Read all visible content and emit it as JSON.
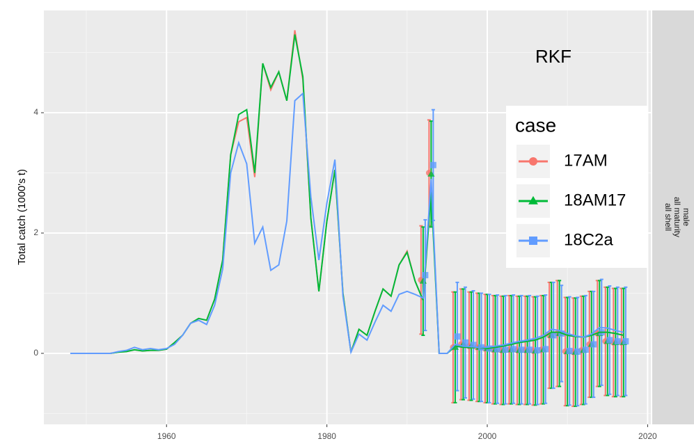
{
  "chart_data": {
    "type": "line",
    "annotation": "RKF",
    "y_label": "Total catch (1000's t)",
    "strip": [
      "male",
      "all maturity",
      "all shell"
    ],
    "legend_title": "case",
    "legend_position": "right",
    "grid": true,
    "xlim": [
      1944.7,
      2020.4
    ],
    "ylim": [
      -1.18,
      5.7
    ],
    "xticks": [
      1960,
      1980,
      2000,
      2020
    ],
    "yticks": [
      0,
      2,
      4
    ],
    "x_minor": [
      1950,
      1970,
      1990,
      2010
    ],
    "y_minor": [
      -1,
      1,
      3,
      5
    ],
    "x": [
      1948,
      1949,
      1950,
      1951,
      1952,
      1953,
      1954,
      1955,
      1956,
      1957,
      1958,
      1959,
      1960,
      1961,
      1962,
      1963,
      1964,
      1965,
      1966,
      1967,
      1968,
      1969,
      1970,
      1971,
      1972,
      1973,
      1974,
      1975,
      1976,
      1977,
      1978,
      1979,
      1980,
      1981,
      1982,
      1983,
      1984,
      1985,
      1986,
      1987,
      1988,
      1989,
      1990,
      1991,
      1992,
      1993,
      1994,
      1995,
      1996,
      1997,
      1998,
      1999,
      2000,
      2001,
      2002,
      2003,
      2004,
      2005,
      2006,
      2007,
      2008,
      2009,
      2010,
      2011,
      2012,
      2013,
      2014,
      2015,
      2016,
      2017
    ],
    "obs_x": [
      1992,
      1993,
      1996,
      1997,
      1998,
      1999,
      2000,
      2001,
      2002,
      2003,
      2004,
      2005,
      2006,
      2007,
      2008,
      2009,
      2010,
      2011,
      2012,
      2013,
      2014,
      2015,
      2016,
      2017
    ],
    "series": [
      {
        "name": "17AM",
        "color": "#F8766D",
        "shape": "circle",
        "values": [
          0,
          0,
          0,
          0,
          0,
          0,
          0.02,
          0.03,
          0.06,
          0.04,
          0.05,
          0.05,
          0.07,
          0.18,
          0.3,
          0.5,
          0.58,
          0.55,
          0.9,
          1.55,
          3.3,
          3.85,
          3.92,
          2.93,
          4.82,
          4.38,
          4.68,
          4.2,
          5.37,
          4.55,
          2.25,
          1.03,
          2.2,
          3.05,
          1.0,
          0.02,
          0.4,
          0.3,
          0.7,
          1.07,
          0.95,
          1.47,
          1.7,
          1.2,
          0.88,
          2.8,
          0,
          0,
          0.12,
          0.1,
          0.1,
          0.1,
          0.08,
          0.1,
          0.12,
          0.15,
          0.18,
          0.2,
          0.22,
          0.27,
          0.35,
          0.35,
          0.3,
          0.28,
          0.27,
          0.3,
          0.35,
          0.35,
          0.33,
          0.3
        ],
        "obs": [
          1.22,
          3.0,
          0.1,
          0.15,
          0.12,
          0.1,
          0.08,
          0.06,
          0.05,
          0.06,
          0.05,
          0.05,
          0.04,
          0.06,
          0.3,
          0.33,
          0.03,
          0.02,
          0.05,
          0.15,
          0.33,
          0.2,
          0.18,
          0.18
        ],
        "obs_err": [
          0.9,
          0.88,
          0.92,
          0.92,
          0.9,
          0.9,
          0.9,
          0.9,
          0.9,
          0.9,
          0.9,
          0.9,
          0.9,
          0.9,
          0.88,
          0.88,
          0.9,
          0.9,
          0.9,
          0.88,
          0.88,
          0.9,
          0.9,
          0.9
        ]
      },
      {
        "name": "18AM17",
        "color": "#00BA38",
        "shape": "triangle",
        "values": [
          0,
          0,
          0,
          0,
          0,
          0,
          0.02,
          0.03,
          0.06,
          0.04,
          0.05,
          0.05,
          0.07,
          0.18,
          0.3,
          0.5,
          0.58,
          0.55,
          0.9,
          1.55,
          3.3,
          3.97,
          4.05,
          3.0,
          4.82,
          4.42,
          4.68,
          4.2,
          5.3,
          4.6,
          2.25,
          1.03,
          2.2,
          3.05,
          1.0,
          0.02,
          0.4,
          0.3,
          0.7,
          1.07,
          0.95,
          1.47,
          1.68,
          1.2,
          0.88,
          2.69,
          0,
          0,
          0.12,
          0.1,
          0.1,
          0.1,
          0.08,
          0.1,
          0.12,
          0.15,
          0.18,
          0.2,
          0.22,
          0.27,
          0.35,
          0.35,
          0.3,
          0.28,
          0.27,
          0.3,
          0.35,
          0.35,
          0.33,
          0.3
        ],
        "obs": [
          1.2,
          2.98,
          0.1,
          0.15,
          0.12,
          0.1,
          0.08,
          0.06,
          0.05,
          0.06,
          0.05,
          0.05,
          0.04,
          0.06,
          0.3,
          0.33,
          0.03,
          0.02,
          0.05,
          0.15,
          0.33,
          0.2,
          0.18,
          0.18
        ],
        "obs_err": [
          0.9,
          0.88,
          0.92,
          0.92,
          0.9,
          0.9,
          0.9,
          0.9,
          0.9,
          0.9,
          0.9,
          0.9,
          0.9,
          0.9,
          0.88,
          0.88,
          0.9,
          0.9,
          0.9,
          0.88,
          0.88,
          0.9,
          0.9,
          0.9
        ]
      },
      {
        "name": "18C2a",
        "color": "#619CFF",
        "shape": "square",
        "values": [
          0,
          0,
          0,
          0,
          0,
          0,
          0.03,
          0.05,
          0.1,
          0.06,
          0.08,
          0.06,
          0.08,
          0.15,
          0.3,
          0.5,
          0.55,
          0.48,
          0.8,
          1.4,
          3.0,
          3.5,
          3.15,
          1.83,
          2.1,
          1.38,
          1.47,
          2.2,
          4.2,
          4.32,
          2.6,
          1.55,
          2.5,
          3.22,
          0.95,
          0.02,
          0.32,
          0.22,
          0.52,
          0.8,
          0.7,
          0.98,
          1.03,
          0.98,
          0.92,
          2.9,
          0,
          0,
          0.15,
          0.12,
          0.11,
          0.1,
          0.1,
          0.12,
          0.14,
          0.17,
          0.2,
          0.22,
          0.25,
          0.3,
          0.4,
          0.38,
          0.33,
          0.29,
          0.27,
          0.32,
          0.43,
          0.42,
          0.38,
          0.35
        ],
        "obs": [
          1.3,
          3.13,
          0.28,
          0.18,
          0.14,
          0.1,
          0.08,
          0.07,
          0.06,
          0.07,
          0.06,
          0.06,
          0.05,
          0.07,
          0.3,
          0.33,
          0.04,
          0.03,
          0.06,
          0.15,
          0.35,
          0.22,
          0.2,
          0.2
        ],
        "obs_err": [
          0.92,
          0.92,
          0.9,
          0.92,
          0.9,
          0.9,
          0.9,
          0.9,
          0.9,
          0.9,
          0.9,
          0.9,
          0.9,
          0.9,
          0.88,
          0.8,
          0.9,
          0.9,
          0.9,
          0.88,
          0.88,
          0.9,
          0.9,
          0.9
        ]
      }
    ]
  }
}
